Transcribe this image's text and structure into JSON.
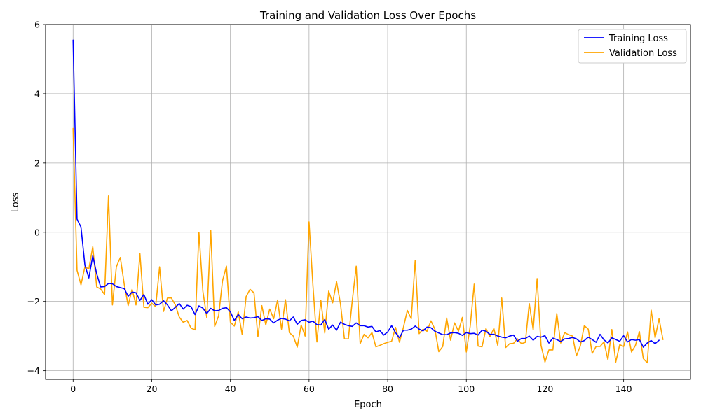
{
  "chart_data": {
    "type": "line",
    "title": "Training and Validation Loss Over Epochs",
    "xlabel": "Epoch",
    "ylabel": "Loss",
    "xlim": [
      -7,
      157
    ],
    "ylim": [
      -4.25,
      6
    ],
    "xticks": [
      0,
      20,
      40,
      60,
      80,
      100,
      120,
      140
    ],
    "yticks": [
      -4,
      -2,
      0,
      2,
      4,
      6
    ],
    "grid": true,
    "legend_position": "top-right",
    "series": [
      {
        "name": "Training Loss",
        "color": "#0000ff",
        "values": [
          5.55,
          0.38,
          0.15,
          -0.95,
          -1.32,
          -0.68,
          -1.2,
          -1.58,
          -1.57,
          -1.48,
          -1.49,
          -1.57,
          -1.6,
          -1.63,
          -1.85,
          -1.73,
          -1.75,
          -1.97,
          -1.8,
          -2.08,
          -1.95,
          -2.1,
          -2.08,
          -1.98,
          -2.1,
          -2.27,
          -2.17,
          -2.06,
          -2.22,
          -2.11,
          -2.15,
          -2.38,
          -2.13,
          -2.19,
          -2.35,
          -2.2,
          -2.27,
          -2.26,
          -2.2,
          -2.18,
          -2.3,
          -2.55,
          -2.38,
          -2.5,
          -2.45,
          -2.48,
          -2.47,
          -2.44,
          -2.55,
          -2.5,
          -2.51,
          -2.62,
          -2.54,
          -2.49,
          -2.51,
          -2.56,
          -2.45,
          -2.66,
          -2.55,
          -2.53,
          -2.6,
          -2.57,
          -2.67,
          -2.68,
          -2.52,
          -2.8,
          -2.68,
          -2.83,
          -2.6,
          -2.66,
          -2.7,
          -2.72,
          -2.62,
          -2.7,
          -2.7,
          -2.74,
          -2.72,
          -2.88,
          -2.84,
          -2.97,
          -2.88,
          -2.7,
          -2.9,
          -3.05,
          -2.83,
          -2.83,
          -2.8,
          -2.71,
          -2.8,
          -2.85,
          -2.74,
          -2.76,
          -2.86,
          -2.91,
          -2.96,
          -2.96,
          -2.91,
          -2.9,
          -2.92,
          -2.98,
          -2.9,
          -2.93,
          -2.92,
          -2.97,
          -2.83,
          -2.86,
          -2.95,
          -2.95,
          -3.0,
          -3.03,
          -3.05,
          -3.0,
          -2.97,
          -3.15,
          -3.07,
          -3.07,
          -3.0,
          -3.12,
          -3.01,
          -3.03,
          -2.99,
          -3.2,
          -3.06,
          -3.1,
          -3.16,
          -3.08,
          -3.07,
          -3.04,
          -3.08,
          -3.17,
          -3.13,
          -3.03,
          -3.1,
          -3.18,
          -2.95,
          -3.11,
          -3.2,
          -3.05,
          -3.1,
          -3.15,
          -2.99,
          -3.17,
          -3.1,
          -3.12,
          -3.1,
          -3.32,
          -3.2,
          -3.13,
          -3.22,
          -3.12
        ]
      },
      {
        "name": "Validation Loss",
        "color": "#ffa500",
        "values": [
          3.0,
          -1.1,
          -1.52,
          -1.0,
          -1.06,
          -0.42,
          -1.58,
          -1.64,
          -1.8,
          1.05,
          -2.1,
          -1.0,
          -0.73,
          -1.5,
          -2.12,
          -1.65,
          -2.1,
          -0.62,
          -2.17,
          -2.18,
          -2.05,
          -2.15,
          -1.0,
          -2.29,
          -1.9,
          -1.9,
          -2.1,
          -2.45,
          -2.6,
          -2.55,
          -2.77,
          -2.82,
          0.0,
          -1.7,
          -2.47,
          0.06,
          -2.72,
          -2.42,
          -1.4,
          -0.98,
          -2.6,
          -2.71,
          -2.3,
          -2.96,
          -1.86,
          -1.65,
          -1.75,
          -3.02,
          -2.12,
          -2.68,
          -2.22,
          -2.5,
          -1.96,
          -2.8,
          -1.95,
          -2.9,
          -3.0,
          -3.32,
          -2.68,
          -3.0,
          0.3,
          -1.55,
          -3.17,
          -1.97,
          -2.91,
          -1.7,
          -2.04,
          -1.43,
          -2.07,
          -3.08,
          -3.08,
          -1.98,
          -0.98,
          -3.22,
          -2.95,
          -3.05,
          -2.9,
          -3.31,
          -3.27,
          -3.22,
          -3.18,
          -3.15,
          -2.75,
          -3.18,
          -2.75,
          -2.26,
          -2.5,
          -0.81,
          -2.93,
          -2.8,
          -2.86,
          -2.56,
          -2.8,
          -3.45,
          -3.3,
          -2.48,
          -3.12,
          -2.62,
          -2.86,
          -2.46,
          -3.46,
          -2.7,
          -1.5,
          -3.29,
          -3.31,
          -2.78,
          -3.02,
          -2.78,
          -3.27,
          -1.9,
          -3.33,
          -3.22,
          -3.21,
          -3.08,
          -3.22,
          -3.18,
          -2.06,
          -2.82,
          -1.34,
          -3.27,
          -3.75,
          -3.4,
          -3.4,
          -2.35,
          -3.2,
          -2.9,
          -2.96,
          -3.0,
          -3.57,
          -3.28,
          -2.7,
          -2.8,
          -3.5,
          -3.3,
          -3.3,
          -3.17,
          -3.68,
          -2.81,
          -3.75,
          -3.25,
          -3.3,
          -2.88,
          -3.46,
          -3.27,
          -2.87,
          -3.65,
          -3.77,
          -2.25,
          -3.05,
          -2.5,
          -3.1
        ]
      }
    ]
  }
}
